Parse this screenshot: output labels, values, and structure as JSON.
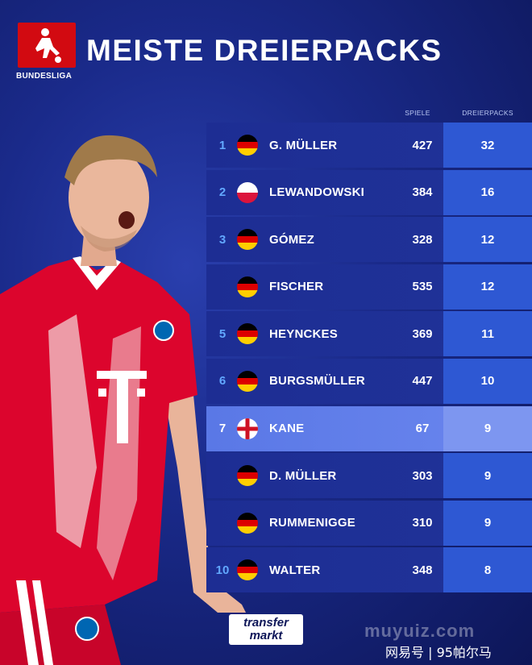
{
  "header": {
    "logo_text": "BUNDESLIGA",
    "title": "MEISTE DREIERPACKS"
  },
  "columns": {
    "games": "SPIELE",
    "hattricks": "DREIERPACKS"
  },
  "rows": [
    {
      "rank": "1",
      "flag": "germany-flag-icon",
      "name": "G. MÜLLER",
      "games": "427",
      "hattricks": "32",
      "highlight": false
    },
    {
      "rank": "2",
      "flag": "poland-flag-icon",
      "name": "LEWANDOWSKI",
      "games": "384",
      "hattricks": "16",
      "highlight": false
    },
    {
      "rank": "3",
      "flag": "germany-flag-icon",
      "name": "GÓMEZ",
      "games": "328",
      "hattricks": "12",
      "highlight": false
    },
    {
      "rank": "",
      "flag": "germany-flag-icon",
      "name": "FISCHER",
      "games": "535",
      "hattricks": "12",
      "highlight": false
    },
    {
      "rank": "5",
      "flag": "germany-flag-icon",
      "name": "HEYNCKES",
      "games": "369",
      "hattricks": "11",
      "highlight": false
    },
    {
      "rank": "6",
      "flag": "germany-flag-icon",
      "name": "BURGSMÜLLER",
      "games": "447",
      "hattricks": "10",
      "highlight": false
    },
    {
      "rank": "7",
      "flag": "england-flag-icon",
      "name": "KANE",
      "games": "67",
      "hattricks": "9",
      "highlight": true
    },
    {
      "rank": "",
      "flag": "germany-flag-icon",
      "name": "D. MÜLLER",
      "games": "303",
      "hattricks": "9",
      "highlight": false
    },
    {
      "rank": "",
      "flag": "germany-flag-icon",
      "name": "RUMMENIGGE",
      "games": "310",
      "hattricks": "9",
      "highlight": false
    },
    {
      "rank": "10",
      "flag": "germany-flag-icon",
      "name": "WALTER",
      "games": "348",
      "hattricks": "8",
      "highlight": false
    }
  ],
  "footer": {
    "tm_line1": "transfer",
    "tm_line2": "markt",
    "watermark_site": "muyuiz.com",
    "watermark_credit": "网易号 | 95帕尔马"
  },
  "colors": {
    "background": "#1a2a8a",
    "row": "#1d2d93",
    "row_highlight": "#5a78e6",
    "hattrick_cell": "#2e58d3",
    "rank": "#62a8ff",
    "logo_red": "#d20a11",
    "jersey_red": "#dc052d"
  }
}
